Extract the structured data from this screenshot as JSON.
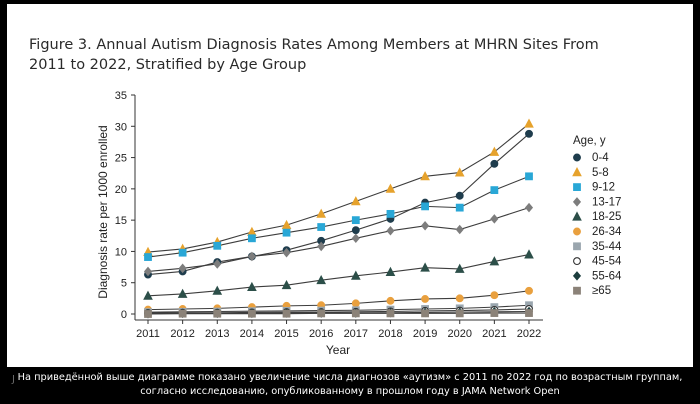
{
  "title": "Figure 3. Annual Autism Diagnosis Rates Among Members at MHRN Sites From 2011 to 2022, Stratified by Age Group",
  "caption": "На приведённой выше диаграмме показано увеличение числа диагнозов «аутизм» с 2011 по 2022 год по возрастным группам, согласно исследованию, опубликованному в прошлом году в JAMA Network Open",
  "caption_mark": "J",
  "chart_data": {
    "type": "line",
    "title": "Figure 3. Annual Autism Diagnosis Rates Among Members at MHRN Sites From 2011 to 2022, Stratified by Age Group",
    "xlabel": "Year",
    "ylabel": "Diagnosis rate per 1000 enrolled",
    "x": [
      2011,
      2012,
      2013,
      2014,
      2015,
      2016,
      2017,
      2018,
      2019,
      2020,
      2021,
      2022
    ],
    "ylim": [
      0,
      35
    ],
    "yticks": [
      0,
      5,
      10,
      15,
      20,
      25,
      30,
      35
    ],
    "grid": false,
    "legend_title": "Age, y",
    "legend_position": "right",
    "series": [
      {
        "name": "0-4",
        "marker": "circle",
        "color": "#1f3d4d",
        "filled": true,
        "values": [
          6.3,
          6.8,
          8.3,
          9.2,
          10.2,
          11.7,
          13.4,
          15.2,
          17.8,
          18.9,
          24.0,
          28.8
        ]
      },
      {
        "name": "5-8",
        "marker": "triangle",
        "color": "#e6a22c",
        "filled": true,
        "values": [
          9.9,
          10.4,
          11.5,
          13.1,
          14.2,
          16.0,
          18.0,
          20.0,
          22.0,
          22.6,
          25.9,
          30.4
        ]
      },
      {
        "name": "9-12",
        "marker": "square",
        "color": "#29a7d6",
        "filled": true,
        "values": [
          9.1,
          9.8,
          10.9,
          12.1,
          13.0,
          13.9,
          15.0,
          16.0,
          17.2,
          17.0,
          19.8,
          22.0
        ]
      },
      {
        "name": "13-17",
        "marker": "diamond",
        "color": "#7d7d7d",
        "filled": true,
        "values": [
          6.8,
          7.3,
          8.0,
          9.2,
          9.8,
          10.8,
          12.1,
          13.3,
          14.1,
          13.5,
          15.2,
          17.0
        ]
      },
      {
        "name": "18-25",
        "marker": "triangle",
        "color": "#2c4f49",
        "filled": true,
        "values": [
          2.9,
          3.2,
          3.7,
          4.3,
          4.6,
          5.4,
          6.1,
          6.7,
          7.4,
          7.2,
          8.4,
          9.5
        ]
      },
      {
        "name": "26-34",
        "marker": "circle",
        "color": "#e9a03e",
        "filled": true,
        "values": [
          0.7,
          0.8,
          0.9,
          1.1,
          1.3,
          1.4,
          1.7,
          2.1,
          2.4,
          2.5,
          3.0,
          3.7
        ]
      },
      {
        "name": "35-44",
        "marker": "square",
        "color": "#9aa6ae",
        "filled": true,
        "values": [
          0.3,
          0.35,
          0.4,
          0.45,
          0.5,
          0.55,
          0.6,
          0.7,
          0.8,
          0.9,
          1.1,
          1.4
        ]
      },
      {
        "name": "45-54",
        "marker": "circle",
        "color": "#333333",
        "filled": false,
        "values": [
          0.15,
          0.2,
          0.2,
          0.25,
          0.3,
          0.3,
          0.35,
          0.4,
          0.5,
          0.55,
          0.65,
          0.8
        ]
      },
      {
        "name": "55-64",
        "marker": "diamond",
        "color": "#1d3e3e",
        "filled": true,
        "values": [
          0.05,
          0.1,
          0.1,
          0.1,
          0.15,
          0.15,
          0.15,
          0.2,
          0.25,
          0.3,
          0.35,
          0.4
        ]
      },
      {
        "name": "≥65",
        "marker": "square",
        "color": "#8b8278",
        "filled": true,
        "values": [
          0.0,
          0.05,
          0.05,
          0.05,
          0.05,
          0.1,
          0.1,
          0.1,
          0.1,
          0.1,
          0.15,
          0.15
        ]
      }
    ]
  }
}
